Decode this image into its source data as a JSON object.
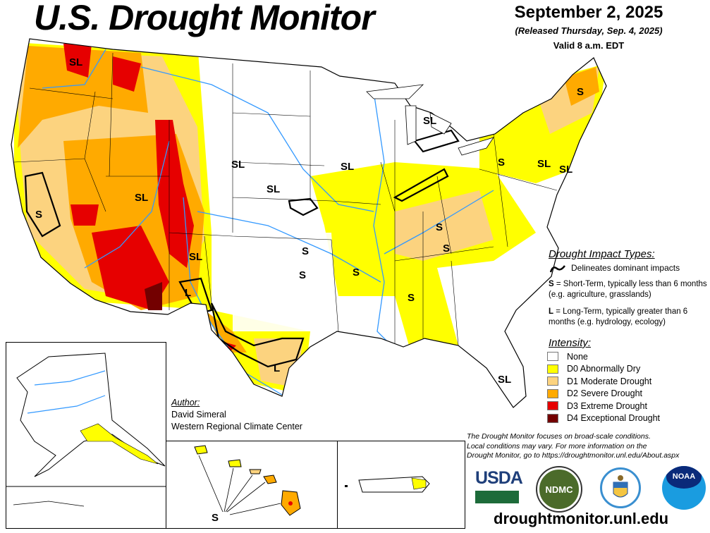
{
  "header": {
    "title": "U.S. Drought Monitor",
    "date": "September 2, 2025",
    "released": "(Released Thursday, Sep. 4, 2025)",
    "valid": "Valid 8 a.m. EDT"
  },
  "impact_types": {
    "title": "Drought Impact Types:",
    "line_label": "Delineates dominant impacts",
    "short_key": "S",
    "short_text": " = Short-Term, typically less than 6 months (e.g. agriculture, grasslands)",
    "long_key": "L",
    "long_text": " = Long-Term, typically greater than 6 months (e.g. hydrology, ecology)"
  },
  "intensity": {
    "title": "Intensity:",
    "items": [
      {
        "label": "None",
        "color": "#ffffff"
      },
      {
        "label": "D0 Abnormally Dry",
        "color": "#ffff00"
      },
      {
        "label": "D1 Moderate Drought",
        "color": "#fcd37f"
      },
      {
        "label": "D2 Severe Drought",
        "color": "#ffaa00"
      },
      {
        "label": "D3 Extreme Drought",
        "color": "#e60000"
      },
      {
        "label": "D4 Exceptional Drought",
        "color": "#730000"
      }
    ]
  },
  "map_labels": [
    "SL",
    "SL",
    "S",
    "SL",
    "SL",
    "L",
    "L",
    "SL",
    "SL",
    "S",
    "S",
    "S",
    "S",
    "S",
    "S",
    "SL",
    "S",
    "SL",
    "SL",
    "L",
    "S",
    "S",
    "SL"
  ],
  "author": {
    "heading": "Author:",
    "name": "David Simeral",
    "org": "Western Regional Climate Center"
  },
  "disclaimer": {
    "line1": "The Drought Monitor focuses on broad-scale conditions.",
    "line2": "Local conditions may vary. For more information on the",
    "line3": "Drought Monitor, go to https://droughtmonitor.unl.edu/About.aspx"
  },
  "logos": {
    "usda": "USDA",
    "ndmc": "NDMC",
    "noaa": "NOAA"
  },
  "url": "droughtmonitor.unl.edu",
  "colors": {
    "water": "#3399ff",
    "border": "#000000"
  }
}
